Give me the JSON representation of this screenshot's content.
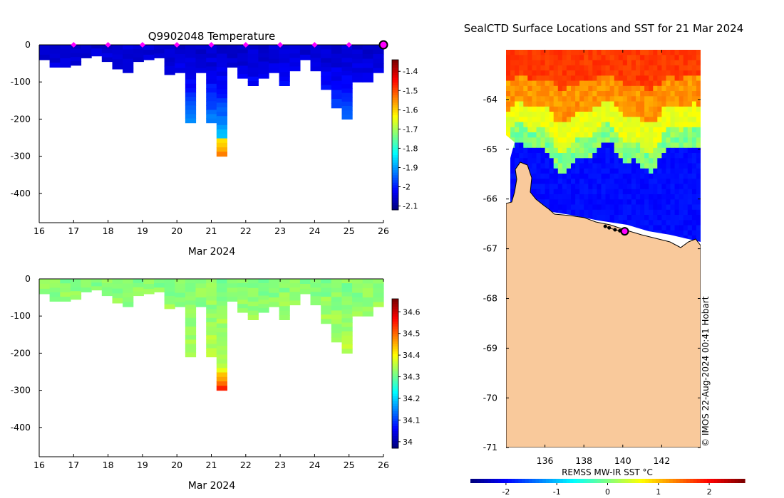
{
  "chart_data": [
    {
      "type": "heatmap",
      "title": "Q9902048  Temperature",
      "xlabel": "Mar 2024",
      "ylabel": "",
      "xlim": [
        16,
        26
      ],
      "ylim": [
        -480,
        0
      ],
      "x_ticks": [
        "16",
        "17",
        "18",
        "19",
        "20",
        "21",
        "22",
        "23",
        "24",
        "25",
        "26"
      ],
      "y_ticks": [
        "0",
        "-100",
        "-200",
        "-300",
        "-400"
      ],
      "colorbar": {
        "min": -2.12,
        "max": -1.34,
        "ticks": [
          "-1.4",
          "-1.5",
          "-1.6",
          "-1.7",
          "-1.8",
          "-1.9",
          "-2",
          "-2.1"
        ]
      },
      "profile_depths_m": [
        40,
        60,
        60,
        55,
        35,
        30,
        45,
        65,
        75,
        45,
        40,
        35,
        80,
        75,
        210,
        75,
        210,
        300,
        60,
        90,
        110,
        90,
        75,
        110,
        70,
        40,
        70,
        120,
        170,
        200,
        100,
        100,
        75
      ],
      "profile_time_range": [
        16.0,
        26.0
      ],
      "surface_markers": [
        17,
        18,
        19,
        20,
        21,
        22,
        23,
        24,
        25
      ],
      "latest_marker": 26
    },
    {
      "type": "heatmap",
      "title": "",
      "xlabel": "Mar 2024",
      "xlim": [
        16,
        26
      ],
      "ylim": [
        -480,
        0
      ],
      "x_ticks": [
        "16",
        "17",
        "18",
        "19",
        "20",
        "21",
        "22",
        "23",
        "24",
        "25",
        "26"
      ],
      "y_ticks": [
        "0",
        "-100",
        "-200",
        "-300",
        "-400"
      ],
      "colorbar": {
        "min": 33.97,
        "max": 34.66,
        "ticks": [
          "34.6",
          "34.5",
          "34.4",
          "34.3",
          "34.2",
          "34.1",
          "34"
        ]
      }
    },
    {
      "type": "heatmap",
      "title": "SealCTD Surface Locations and SST for 21 Mar 2024",
      "lon_range": [
        134.0,
        144.0
      ],
      "lat_range": [
        -71.0,
        -63.0
      ],
      "x_ticks": [
        "136",
        "138",
        "140",
        "142"
      ],
      "y_ticks": [
        "-64",
        "-65",
        "-66",
        "-67",
        "-68",
        "-69",
        "-70",
        "-71"
      ],
      "colorbar": {
        "label": "REMSS MW-IR SST °C",
        "min": -2.7,
        "max": 2.7,
        "ticks": [
          "-2",
          "-1",
          "0",
          "1",
          "2"
        ]
      },
      "track_points": [
        [
          139.1,
          -66.55
        ],
        [
          139.3,
          -66.58
        ],
        [
          139.6,
          -66.62
        ],
        [
          139.85,
          -66.64
        ],
        [
          140.1,
          -66.65
        ]
      ],
      "latest_point": [
        140.1,
        -66.65
      ],
      "credit": "© IMOS 22-Aug-2024 00:41 Hobart"
    }
  ],
  "colors": {
    "land": "#f9c99b",
    "marker": "#ff00ff",
    "latest_marker": "#ff00ff"
  }
}
